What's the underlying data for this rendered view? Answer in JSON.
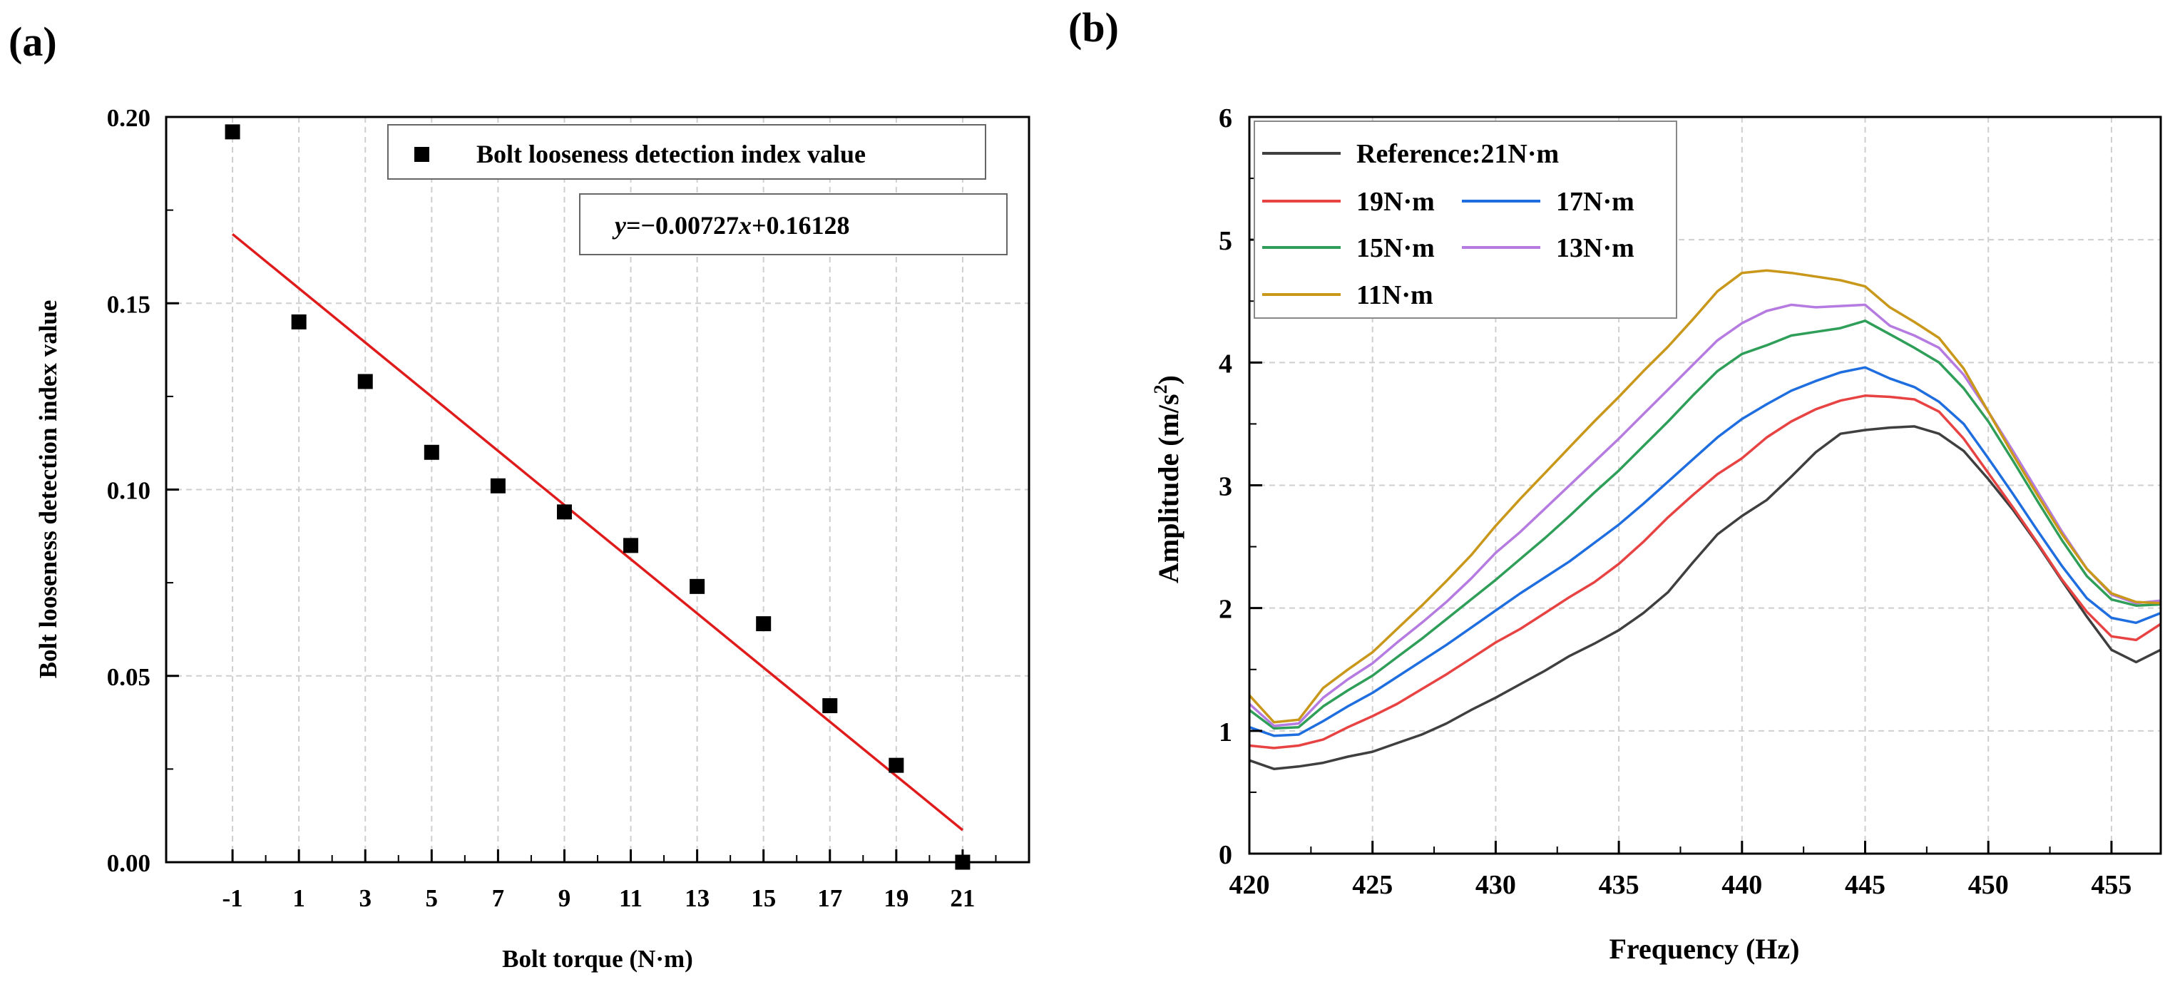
{
  "chart_data": [
    {
      "panel": "(a)",
      "type": "scatter",
      "xlabel": "Bolt torque (N·m)",
      "ylabel": "Bolt looseness detection index value",
      "xlim": [
        -3,
        23
      ],
      "ylim": [
        0,
        0.2
      ],
      "xticks": [
        "-1",
        "1",
        "3",
        "5",
        "7",
        "9",
        "11",
        "13",
        "15",
        "17",
        "19",
        "21"
      ],
      "yticks": [
        "0.00",
        "0.05",
        "0.10",
        "0.15",
        "0.20"
      ],
      "grid": true,
      "legend_position": "top-right",
      "series": [
        {
          "name": "Bolt looseness detection index value",
          "marker": "square",
          "color": "#000000",
          "points": [
            [
              -1,
              0.196
            ],
            [
              1,
              0.145
            ],
            [
              3,
              0.129
            ],
            [
              5,
              0.11
            ],
            [
              7,
              0.101
            ],
            [
              9,
              0.094
            ],
            [
              11,
              0.085
            ],
            [
              13,
              0.074
            ],
            [
              15,
              0.064
            ],
            [
              17,
              0.042
            ],
            [
              19,
              0.026
            ],
            [
              21,
              0.0
            ]
          ]
        }
      ],
      "fit": {
        "label_y": "y",
        "label_x": "x",
        "label_rest": "=−0.00727",
        "label_tail": "+0.16128",
        "slope": -0.00727,
        "intercept": 0.16128,
        "x_range": [
          -1,
          21
        ],
        "color": "#e01b1b"
      }
    },
    {
      "panel": "(b)",
      "type": "line",
      "xlabel": "Frequency (Hz)",
      "ylabel_main": "Amplitude (m/s",
      "ylabel_sup": "2",
      "ylabel_end": ")",
      "xlim": [
        420,
        457
      ],
      "ylim": [
        0,
        6
      ],
      "xticks": [
        "420",
        "425",
        "430",
        "435",
        "440",
        "445",
        "450",
        "455"
      ],
      "yticks": [
        "0",
        "1",
        "2",
        "3",
        "4",
        "5",
        "6"
      ],
      "grid": true,
      "legend_position": "top-left",
      "x": [
        420,
        421,
        422,
        423,
        424,
        425,
        426,
        427,
        428,
        429,
        430,
        431,
        432,
        433,
        434,
        435,
        436,
        437,
        438,
        439,
        440,
        441,
        442,
        443,
        444,
        445,
        446,
        447,
        448,
        449,
        450,
        451,
        452,
        453,
        454,
        455,
        456,
        457
      ],
      "series": [
        {
          "name": "Reference:21N·m",
          "color": "#3f3f3f",
          "values": [
            0.76,
            0.69,
            0.71,
            0.74,
            0.79,
            0.83,
            0.9,
            0.97,
            1.06,
            1.17,
            1.27,
            1.38,
            1.49,
            1.61,
            1.71,
            1.82,
            1.96,
            2.13,
            2.37,
            2.6,
            2.75,
            2.88,
            3.07,
            3.27,
            3.42,
            3.45,
            3.47,
            3.48,
            3.42,
            3.28,
            3.05,
            2.8,
            2.52,
            2.22,
            1.93,
            1.66,
            1.56,
            1.66
          ]
        },
        {
          "name": "19N·m",
          "color": "#e84343",
          "values": [
            0.88,
            0.86,
            0.88,
            0.93,
            1.03,
            1.12,
            1.22,
            1.34,
            1.46,
            1.59,
            1.72,
            1.83,
            1.96,
            2.09,
            2.21,
            2.36,
            2.54,
            2.74,
            2.92,
            3.09,
            3.22,
            3.39,
            3.52,
            3.62,
            3.69,
            3.73,
            3.72,
            3.7,
            3.6,
            3.38,
            3.1,
            2.82,
            2.53,
            2.23,
            1.97,
            1.77,
            1.74,
            1.87
          ]
        },
        {
          "name": "17N·m",
          "color": "#1f6ee0",
          "values": [
            1.03,
            0.96,
            0.97,
            1.08,
            1.2,
            1.31,
            1.44,
            1.57,
            1.7,
            1.84,
            1.98,
            2.12,
            2.25,
            2.38,
            2.53,
            2.68,
            2.85,
            3.03,
            3.21,
            3.39,
            3.54,
            3.66,
            3.77,
            3.85,
            3.92,
            3.96,
            3.87,
            3.8,
            3.68,
            3.5,
            3.22,
            2.93,
            2.63,
            2.34,
            2.08,
            1.92,
            1.88,
            1.96
          ]
        },
        {
          "name": "15N·m",
          "color": "#2e9e58",
          "values": [
            1.17,
            1.02,
            1.03,
            1.2,
            1.33,
            1.45,
            1.6,
            1.75,
            1.91,
            2.07,
            2.23,
            2.4,
            2.57,
            2.75,
            2.94,
            3.12,
            3.32,
            3.52,
            3.73,
            3.93,
            4.07,
            4.14,
            4.22,
            4.25,
            4.28,
            4.34,
            4.23,
            4.12,
            4.0,
            3.79,
            3.52,
            3.2,
            2.87,
            2.55,
            2.26,
            2.07,
            2.02,
            2.03
          ]
        },
        {
          "name": "13N·m",
          "color": "#b57be0",
          "values": [
            1.22,
            1.04,
            1.06,
            1.27,
            1.42,
            1.55,
            1.72,
            1.88,
            2.05,
            2.24,
            2.45,
            2.62,
            2.81,
            3.0,
            3.19,
            3.38,
            3.58,
            3.78,
            3.98,
            4.18,
            4.32,
            4.42,
            4.47,
            4.45,
            4.46,
            4.47,
            4.3,
            4.22,
            4.12,
            3.9,
            3.6,
            3.28,
            2.95,
            2.62,
            2.32,
            2.11,
            2.04,
            2.06
          ]
        },
        {
          "name": "11N·m",
          "color": "#c9971a",
          "values": [
            1.29,
            1.07,
            1.09,
            1.35,
            1.5,
            1.64,
            1.83,
            2.02,
            2.22,
            2.43,
            2.67,
            2.89,
            3.1,
            3.31,
            3.52,
            3.72,
            3.93,
            4.13,
            4.35,
            4.58,
            4.73,
            4.75,
            4.73,
            4.7,
            4.67,
            4.62,
            4.45,
            4.33,
            4.2,
            3.95,
            3.6,
            3.25,
            2.92,
            2.6,
            2.32,
            2.12,
            2.05,
            2.04
          ]
        }
      ]
    }
  ],
  "labels": {
    "panel_a": "(a)",
    "panel_b": "(b)"
  }
}
